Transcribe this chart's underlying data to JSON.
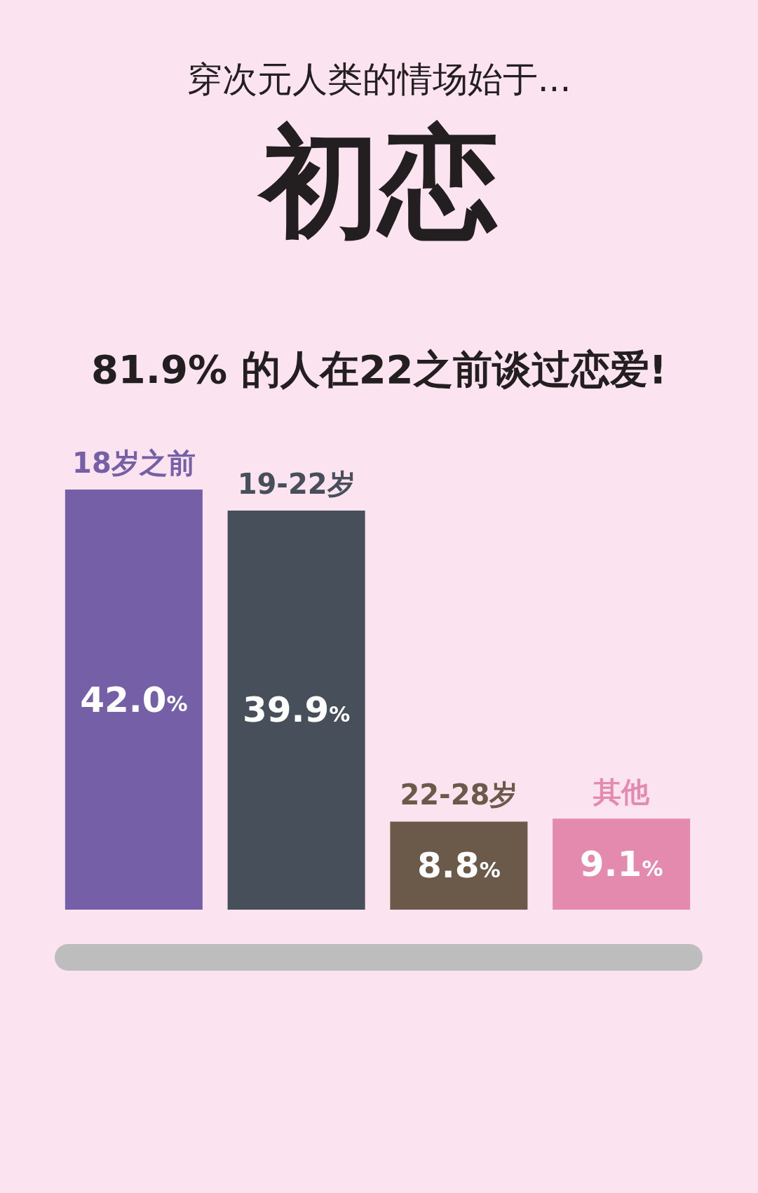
{
  "chart_data": {
    "type": "bar",
    "subtitle": "穿次元人类的情场始于...",
    "title": "初恋",
    "annotations": [
      "81.9% 的人在22之前谈过恋爱!"
    ],
    "categories": [
      "18岁之前",
      "19-22岁",
      "22-28岁",
      "其他"
    ],
    "values": [
      42.0,
      39.9,
      8.8,
      9.1
    ],
    "colors": [
      "#7560a8",
      "#474f5a",
      "#6b5a4a",
      "#e38aae"
    ],
    "value_labels": [
      "42.0%",
      "39.9%",
      "8.8%",
      "9.1%"
    ],
    "tick_labels": "x"
  }
}
